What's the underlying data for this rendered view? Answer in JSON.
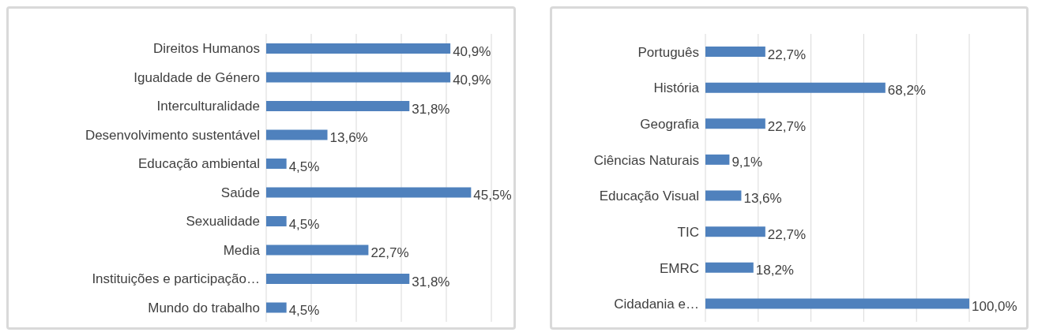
{
  "chart_data": [
    {
      "type": "bar",
      "orientation": "horizontal",
      "categories": [
        "Direitos Humanos",
        "Igualdade de Género",
        "Interculturalidade",
        "Desenvolvimento sustentável",
        "Educação ambiental",
        "Saúde",
        "Sexualidade",
        "Media",
        "Instituições e participação…",
        "Mundo do trabalho"
      ],
      "values": [
        40.9,
        40.9,
        31.8,
        13.6,
        4.5,
        45.5,
        4.5,
        22.7,
        31.8,
        4.5
      ],
      "value_labels": [
        "40,9%",
        "40,9%",
        "31,8%",
        "13,6%",
        "4,5%",
        "45,5%",
        "4,5%",
        "22,7%",
        "31,8%",
        "4,5%"
      ],
      "color": "#4f81bd",
      "grid": "x",
      "tick_labels": "y"
    },
    {
      "type": "bar",
      "orientation": "horizontal",
      "categories": [
        "Português",
        "História",
        "Geografia",
        "Ciências Naturais",
        "Educação Visual",
        "TIC",
        "EMRC",
        "Cidadania e…"
      ],
      "values": [
        22.7,
        68.2,
        22.7,
        9.1,
        13.6,
        22.7,
        18.2,
        100.0
      ],
      "value_labels": [
        "22,7%",
        "68,2%",
        "22,7%",
        "9,1%",
        "13,6%",
        "22,7%",
        "18,2%",
        "100,0%"
      ],
      "color": "#4f81bd",
      "grid": "x",
      "tick_labels": "y"
    }
  ]
}
